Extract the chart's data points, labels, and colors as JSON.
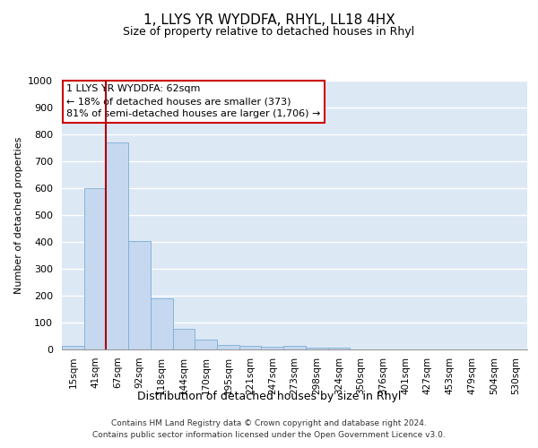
{
  "title": "1, LLYS YR WYDDFA, RHYL, LL18 4HX",
  "subtitle": "Size of property relative to detached houses in Rhyl",
  "xlabel": "Distribution of detached houses by size in Rhyl",
  "ylabel": "Number of detached properties",
  "bar_color": "#c5d8f0",
  "bar_edge_color": "#7aafd4",
  "background_color": "#dde8f5",
  "grid_color": "#ffffff",
  "categories": [
    "15sqm",
    "41sqm",
    "67sqm",
    "92sqm",
    "118sqm",
    "144sqm",
    "170sqm",
    "195sqm",
    "221sqm",
    "247sqm",
    "273sqm",
    "298sqm",
    "324sqm",
    "350sqm",
    "376sqm",
    "401sqm",
    "427sqm",
    "453sqm",
    "479sqm",
    "504sqm",
    "530sqm"
  ],
  "values": [
    15,
    600,
    770,
    405,
    190,
    78,
    38,
    18,
    15,
    10,
    15,
    8,
    7,
    0,
    0,
    0,
    0,
    0,
    0,
    0,
    0
  ],
  "ylim": [
    0,
    1000
  ],
  "yticks": [
    0,
    100,
    200,
    300,
    400,
    500,
    600,
    700,
    800,
    900,
    1000
  ],
  "property_line_index": 2,
  "annotation_text": "1 LLYS YR WYDDFA: 62sqm\n← 18% of detached houses are smaller (373)\n81% of semi-detached houses are larger (1,706) →",
  "annotation_box_color": "#ffffff",
  "annotation_box_edge": "#cc0000",
  "property_line_color": "#aa0000",
  "footer_line1": "Contains HM Land Registry data © Crown copyright and database right 2024.",
  "footer_line2": "Contains public sector information licensed under the Open Government Licence v3.0."
}
